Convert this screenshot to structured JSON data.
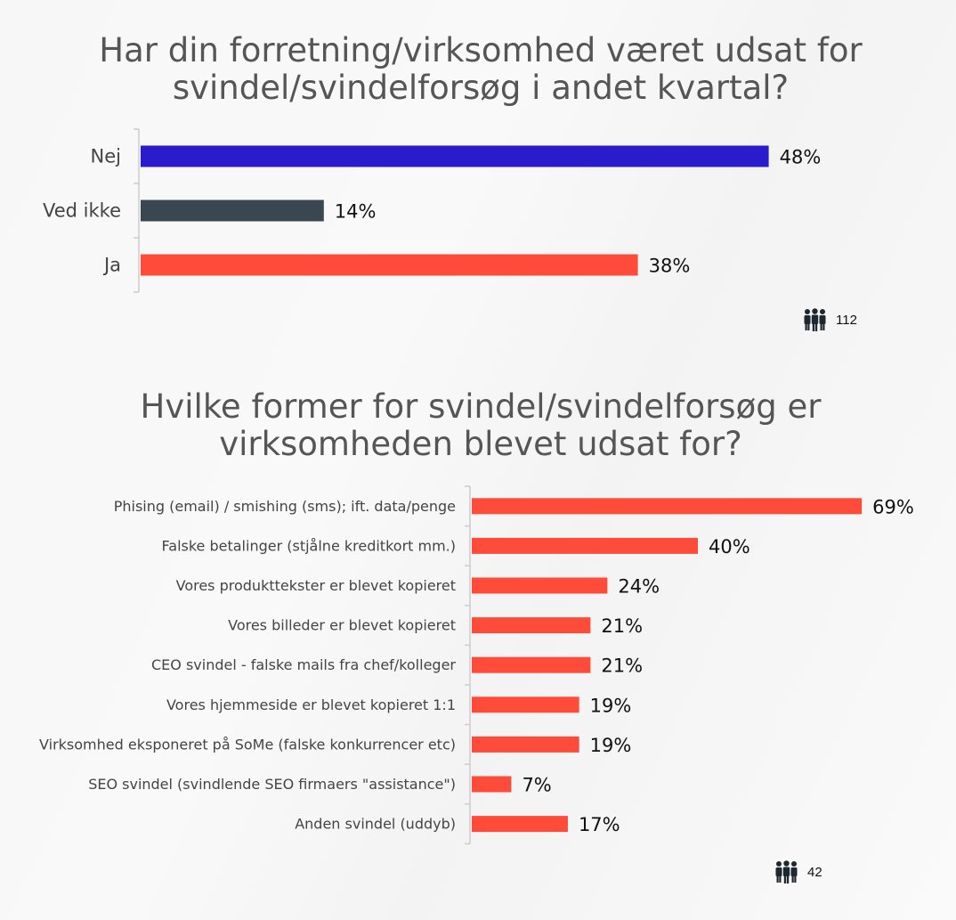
{
  "colors": {
    "blue": "#2a1ccc",
    "dark": "#3a4650",
    "red": "#ff4b3a",
    "axis": "#cccccc"
  },
  "chart_data": [
    {
      "type": "bar",
      "orientation": "horizontal",
      "title": "Har din forretning/virksomhed været udsat for svindel/svindelforsøg i andet kvartal?",
      "categories": [
        "Nej",
        "Ved ikke",
        "Ja"
      ],
      "values": [
        48,
        14,
        38
      ],
      "value_labels": [
        "48%",
        "14%",
        "38%"
      ],
      "bar_colors": [
        "#2a1ccc",
        "#3a4650",
        "#ff4b3a"
      ],
      "unit": "%",
      "n": "112"
    },
    {
      "type": "bar",
      "orientation": "horizontal",
      "title": "Hvilke former for svindel/svindelforsøg er virksomheden blevet udsat for?",
      "categories": [
        "Phising (email) / smishing (sms); ift. data/penge",
        "Falske betalinger (stjålne kreditkort mm.)",
        "Vores produkttekster er blevet kopieret",
        "Vores billeder er blevet kopieret",
        "CEO svindel - falske mails fra chef/kolleger",
        "Vores hjemmeside er blevet kopieret 1:1",
        "Virksomhed eksponeret på SoMe (falske konkurrencer etc)",
        "SEO svindel (svindlende SEO firmaers \"assistance\")",
        "Anden svindel (uddyb)"
      ],
      "values": [
        69,
        40,
        24,
        21,
        21,
        19,
        19,
        7,
        17
      ],
      "value_labels": [
        "69%",
        "40%",
        "24%",
        "21%",
        "21%",
        "19%",
        "19%",
        "7%",
        "17%"
      ],
      "bar_color": "#ff4b3a",
      "unit": "%",
      "n": "42"
    }
  ]
}
